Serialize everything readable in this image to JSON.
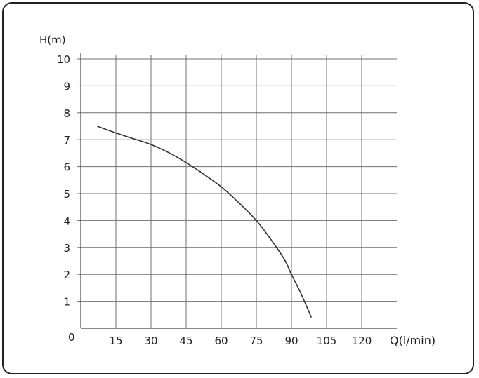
{
  "chart_data": {
    "type": "line",
    "xlabel": "Q(l/min)",
    "ylabel": "H(m)",
    "origin_label": "0",
    "xlim": [
      0,
      135
    ],
    "ylim": [
      0,
      10
    ],
    "x_ticks": [
      "15",
      "30",
      "45",
      "60",
      "75",
      "90",
      "105",
      "120"
    ],
    "y_ticks": [
      "1",
      "2",
      "3",
      "4",
      "5",
      "6",
      "7",
      "8",
      "9",
      "10"
    ],
    "grid": true,
    "series": [
      {
        "values": [
          {
            "x": 7,
            "y": 7.5
          },
          {
            "x": 15,
            "y": 7.25
          },
          {
            "x": 22,
            "y": 7.05
          },
          {
            "x": 30,
            "y": 6.82
          },
          {
            "x": 38,
            "y": 6.5
          },
          {
            "x": 45,
            "y": 6.15
          },
          {
            "x": 52,
            "y": 5.75
          },
          {
            "x": 60,
            "y": 5.25
          },
          {
            "x": 67,
            "y": 4.7
          },
          {
            "x": 75,
            "y": 4.0
          },
          {
            "x": 82,
            "y": 3.2
          },
          {
            "x": 87,
            "y": 2.55
          },
          {
            "x": 90,
            "y": 2.0
          },
          {
            "x": 94,
            "y": 1.3
          },
          {
            "x": 98.5,
            "y": 0.4
          }
        ]
      }
    ],
    "colors": {
      "line": "#333333",
      "grid": "#6f6f6f",
      "text": "#222222"
    }
  }
}
